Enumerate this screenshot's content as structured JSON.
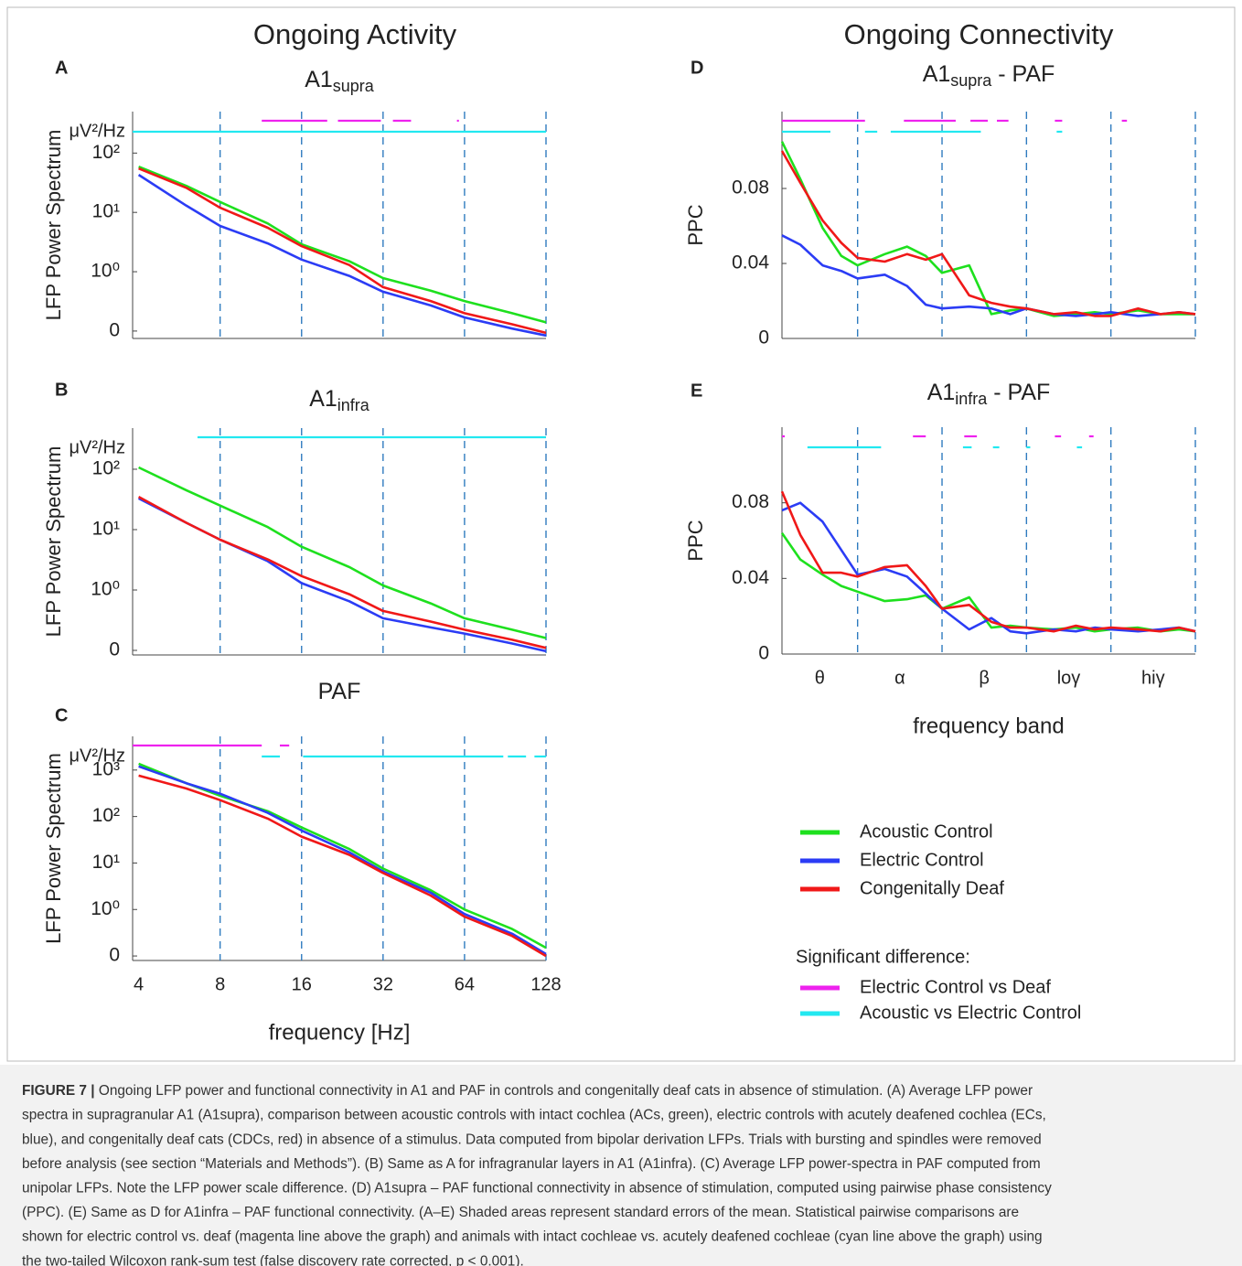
{
  "headings": [
    "Ongoing Activity",
    "Ongoing Connectivity"
  ],
  "significance_legend_title": "Significant difference:",
  "caption": {
    "label": "FIGURE 7 |",
    "lines": [
      "Ongoing LFP power and functional connectivity in A1 and PAF in controls and congenitally deaf cats in absence of stimulation. (A) Average LFP power",
      "spectra in supragranular A1 (A1supra), comparison between acoustic controls with intact cochlea (ACs, green), electric controls with acutely deafened cochlea (ECs,",
      "blue), and congenitally deaf cats (CDCs, red) in absence of a stimulus. Data computed from bipolar derivation LFPs. Trials with bursting and spindles were removed",
      "before analysis (see section “Materials and Methods”). (B) Same as A for infragranular layers in A1 (A1infra). (C) Average LFP power-spectra in PAF computed from",
      "unipolar LFPs. Note the LFP power scale difference. (D) A1supra – PAF functional connectivity in absence of stimulation, computed using pairwise phase consistency",
      "(PPC). (E) Same as D for A1infra – PAF functional connectivity. (A–E) Shaded areas represent standard errors of the mean. Statistical pairwise comparisons are",
      "shown for electric control vs. deaf (magenta line above the graph) and animals with intact cochleae vs. acutely deafened cochleae (cyan line above the graph) using",
      "the two-tailed Wilcoxon rank-sum test (false discovery rate corrected, p < 0.001)."
    ]
  },
  "chart_data": [
    {
      "type": "line",
      "panel": "A",
      "title": "A1",
      "title_sub": "supra",
      "ylabel": "LFP Power Spectrum",
      "unit": "μV²/Hz",
      "xscale": "log",
      "yscale": "log",
      "xlim": [
        3.8,
        128
      ],
      "ylim": [
        0.075,
        500
      ],
      "xticks": [
        8,
        16,
        32,
        64,
        128
      ],
      "show_xtick_labels": false,
      "yticks": [
        {
          "value": 0.1,
          "label": "0"
        },
        {
          "value": 1,
          "label": "10⁰"
        },
        {
          "value": 10,
          "label": "10¹"
        },
        {
          "value": 100,
          "label": "10²"
        }
      ],
      "x": [
        4,
        6,
        8,
        12,
        16,
        24,
        32,
        48,
        64,
        96,
        128
      ],
      "series": [
        {
          "name": "Acoustic Control",
          "color": "#1ee01e",
          "values": [
            59,
            28,
            15,
            6.5,
            2.9,
            1.5,
            0.78,
            0.48,
            0.32,
            0.2,
            0.14
          ]
        },
        {
          "name": "Electric Control",
          "color": "#2b3cf5",
          "values": [
            43,
            13,
            5.9,
            3,
            1.6,
            0.85,
            0.46,
            0.27,
            0.17,
            0.11,
            0.084
          ]
        },
        {
          "name": "Congenitally Deaf",
          "color": "#f01818",
          "values": [
            55,
            26,
            12,
            5.5,
            2.7,
            1.3,
            0.55,
            0.32,
            0.2,
            0.13,
            0.093
          ]
        }
      ],
      "significance": [
        {
          "name": "Electric Control vs Deaf",
          "color": "#ee22ee",
          "segments": [
            [
              11.4,
              19.9
            ],
            [
              21.8,
              31.4
            ],
            [
              34.8,
              40.6
            ],
            [
              60,
              61
            ]
          ]
        },
        {
          "name": "Acoustic vs Electric Control",
          "color": "#22e8f0",
          "segments": [
            [
              3.8,
              128
            ]
          ]
        }
      ]
    },
    {
      "type": "line",
      "panel": "B",
      "title": "A1",
      "title_sub": "infra",
      "ylabel": "LFP Power Spectrum",
      "unit": "μV²/Hz",
      "xscale": "log",
      "yscale": "log",
      "xlim": [
        3.8,
        128
      ],
      "ylim": [
        0.084,
        480
      ],
      "xticks": [
        8,
        16,
        32,
        64,
        128
      ],
      "show_xtick_labels": false,
      "yticks": [
        {
          "value": 0.1,
          "label": "0"
        },
        {
          "value": 1,
          "label": "10⁰"
        },
        {
          "value": 10,
          "label": "10¹"
        },
        {
          "value": 100,
          "label": "10²"
        }
      ],
      "x": [
        4,
        6,
        8,
        12,
        16,
        24,
        32,
        48,
        64,
        96,
        128
      ],
      "series": [
        {
          "name": "Acoustic Control",
          "color": "#1ee01e",
          "values": [
            107,
            45,
            25,
            11,
            5.2,
            2.4,
            1.19,
            0.6,
            0.34,
            0.22,
            0.16
          ]
        },
        {
          "name": "Electric Control",
          "color": "#2b3cf5",
          "values": [
            33,
            13,
            6.8,
            3,
            1.3,
            0.65,
            0.34,
            0.24,
            0.19,
            0.13,
            0.097
          ]
        },
        {
          "name": "Congenitally Deaf",
          "color": "#f01818",
          "values": [
            35,
            13,
            6.8,
            3.2,
            1.7,
            0.85,
            0.45,
            0.3,
            0.22,
            0.15,
            0.11
          ]
        }
      ],
      "significance": [
        {
          "name": "Acoustic vs Electric Control",
          "color": "#22e8f0",
          "segments": [
            [
              6.6,
              128
            ]
          ]
        }
      ]
    },
    {
      "type": "line",
      "panel": "C",
      "title": "PAF",
      "ylabel": "LFP Power Spectrum",
      "unit": "μV²/Hz",
      "xlabel": "frequency [Hz]",
      "xscale": "log",
      "yscale": "log",
      "xlim": [
        3.8,
        128
      ],
      "ylim": [
        0.08,
        5300
      ],
      "xticks": [
        4,
        8,
        16,
        32,
        64,
        128
      ],
      "show_xtick_labels": true,
      "yticks": [
        {
          "value": 0.1,
          "label": "0"
        },
        {
          "value": 1,
          "label": "10⁰"
        },
        {
          "value": 10,
          "label": "10¹"
        },
        {
          "value": 100,
          "label": "10²"
        },
        {
          "value": 1000,
          "label": "10³"
        }
      ],
      "x": [
        4,
        6,
        8,
        12,
        16,
        24,
        32,
        48,
        64,
        96,
        128
      ],
      "series": [
        {
          "name": "Acoustic Control",
          "color": "#1ee01e",
          "values": [
            1370,
            520,
            280,
            130,
            58,
            20,
            7.6,
            2.6,
            1,
            0.38,
            0.15
          ]
        },
        {
          "name": "Electric Control",
          "color": "#2b3cf5",
          "values": [
            1200,
            520,
            310,
            120,
            50,
            17,
            6.6,
            2.3,
            0.8,
            0.3,
            0.11
          ]
        },
        {
          "name": "Congenitally Deaf",
          "color": "#f01818",
          "values": [
            760,
            400,
            225,
            90,
            37,
            15,
            6.1,
            2,
            0.7,
            0.27,
            0.1
          ]
        }
      ],
      "significance": [
        {
          "name": "Electric Control vs Deaf",
          "color": "#ee22ee",
          "segments": [
            [
              3.8,
              11.4
            ],
            [
              13.3,
              14.4
            ]
          ]
        },
        {
          "name": "Acoustic vs Electric Control",
          "color": "#22e8f0",
          "segments": [
            [
              11.4,
              13.3
            ],
            [
              16.2,
              89
            ],
            [
              92.5,
              108
            ],
            [
              116,
              128
            ]
          ]
        }
      ]
    },
    {
      "type": "line",
      "panel": "D",
      "title": "A1",
      "title_sub": "supra",
      "title_tail": " - PAF",
      "ylabel": "PPC",
      "xscale": "log",
      "yscale": "linear",
      "xlim": [
        4.3,
        128
      ],
      "ylim": [
        0,
        0.121
      ],
      "xticks": [
        8,
        16,
        32,
        64,
        128
      ],
      "show_xtick_labels": false,
      "yticks": [
        0,
        0.04,
        0.08
      ],
      "x": [
        4.3,
        5,
        6,
        7,
        8,
        10,
        12,
        14,
        16,
        20,
        24,
        28,
        32,
        40,
        48,
        56,
        64,
        80,
        96,
        112,
        128
      ],
      "series": [
        {
          "name": "Acoustic Control",
          "color": "#1ee01e",
          "values": [
            0.105,
            0.085,
            0.059,
            0.044,
            0.039,
            0.045,
            0.049,
            0.044,
            0.035,
            0.039,
            0.013,
            0.015,
            0.016,
            0.012,
            0.013,
            0.014,
            0.013,
            0.015,
            0.013,
            0.013,
            0.013
          ]
        },
        {
          "name": "Electric Control",
          "color": "#2b3cf5",
          "values": [
            0.055,
            0.05,
            0.039,
            0.036,
            0.032,
            0.034,
            0.028,
            0.018,
            0.016,
            0.017,
            0.016,
            0.013,
            0.016,
            0.013,
            0.012,
            0.013,
            0.014,
            0.012,
            0.013,
            0.014,
            0.013
          ]
        },
        {
          "name": "Congenitally Deaf",
          "color": "#f01818",
          "values": [
            0.1,
            0.083,
            0.063,
            0.051,
            0.043,
            0.041,
            0.045,
            0.042,
            0.045,
            0.023,
            0.019,
            0.017,
            0.016,
            0.013,
            0.014,
            0.012,
            0.012,
            0.016,
            0.013,
            0.014,
            0.013
          ]
        }
      ],
      "significance": [
        {
          "name": "Electric Control vs Deaf",
          "color": "#ee22ee",
          "segments": [
            [
              4.3,
              8.5
            ],
            [
              11.7,
              17.9
            ],
            [
              20.2,
              23.3
            ],
            [
              25.1,
              27.6
            ],
            [
              40.4,
              42.9
            ],
            [
              70,
              73
            ]
          ]
        },
        {
          "name": "Acoustic vs Electric Control",
          "color": "#22e8f0",
          "segments": [
            [
              4.3,
              6.4
            ],
            [
              8.5,
              9.4
            ],
            [
              10.5,
              22
            ],
            [
              41,
              42.9
            ]
          ]
        }
      ]
    },
    {
      "type": "line",
      "panel": "E",
      "title": "A1",
      "title_sub": "infra",
      "title_tail": " - PAF",
      "ylabel": "PPC",
      "xlabel": "frequency band",
      "bands": [
        "θ",
        "α",
        "β",
        "loγ",
        "hiγ"
      ],
      "xscale": "log",
      "yscale": "linear",
      "xlim": [
        4.3,
        128
      ],
      "ylim": [
        0,
        0.12
      ],
      "xticks": [
        8,
        16,
        32,
        64,
        128
      ],
      "show_xtick_labels": false,
      "yticks": [
        0,
        0.04,
        0.08
      ],
      "x": [
        4.3,
        5,
        6,
        7,
        8,
        10,
        12,
        14,
        16,
        20,
        24,
        28,
        32,
        40,
        48,
        56,
        64,
        80,
        96,
        112,
        128
      ],
      "series": [
        {
          "name": "Acoustic Control",
          "color": "#1ee01e",
          "values": [
            0.064,
            0.05,
            0.042,
            0.036,
            0.033,
            0.028,
            0.029,
            0.031,
            0.024,
            0.03,
            0.014,
            0.015,
            0.014,
            0.013,
            0.014,
            0.012,
            0.013,
            0.014,
            0.012,
            0.013,
            0.012
          ]
        },
        {
          "name": "Electric Control",
          "color": "#2b3cf5",
          "values": [
            0.076,
            0.08,
            0.07,
            0.055,
            0.042,
            0.045,
            0.041,
            0.032,
            0.024,
            0.013,
            0.019,
            0.012,
            0.011,
            0.013,
            0.012,
            0.014,
            0.013,
            0.012,
            0.013,
            0.014,
            0.012
          ]
        },
        {
          "name": "Congenitally Deaf",
          "color": "#f01818",
          "values": [
            0.086,
            0.063,
            0.043,
            0.043,
            0.041,
            0.046,
            0.047,
            0.036,
            0.024,
            0.026,
            0.017,
            0.014,
            0.014,
            0.012,
            0.015,
            0.013,
            0.014,
            0.013,
            0.012,
            0.014,
            0.012
          ]
        }
      ],
      "significance": [
        {
          "name": "Electric Control vs Deaf",
          "color": "#ee22ee",
          "segments": [
            [
              4.3,
              4.4
            ],
            [
              12.6,
              14
            ],
            [
              19.2,
              21.3
            ],
            [
              40.4,
              42.5
            ],
            [
              53.5,
              55.5
            ]
          ]
        },
        {
          "name": "Acoustic vs Electric Control",
          "color": "#22e8f0",
          "segments": [
            [
              5.3,
              9.7
            ],
            [
              19,
              20.4
            ],
            [
              24.3,
              25.6
            ],
            [
              32,
              33
            ],
            [
              48.4,
              50.5
            ]
          ]
        }
      ]
    }
  ]
}
